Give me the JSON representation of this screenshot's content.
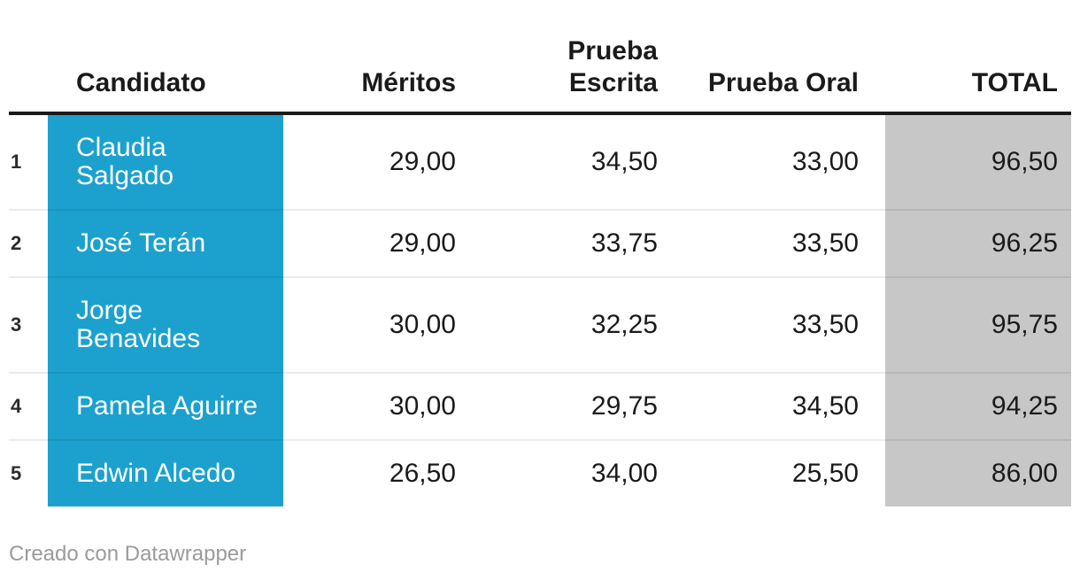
{
  "chart_data": {
    "type": "table",
    "columns": [
      "",
      "Candidato",
      "Méritos",
      "Prueba Escrita",
      "Prueba Oral",
      "TOTAL"
    ],
    "rows": [
      [
        "1",
        "Claudia Salgado",
        "29,00",
        "34,50",
        "33,00",
        "96,50"
      ],
      [
        "2",
        "José Terán",
        "29,00",
        "33,75",
        "33,50",
        "96,25"
      ],
      [
        "3",
        "Jorge Benavides",
        "30,00",
        "32,25",
        "33,50",
        "95,75"
      ],
      [
        "4",
        "Pamela Aguirre",
        "30,00",
        "29,75",
        "34,50",
        "94,25"
      ],
      [
        "5",
        "Edwin Alcedo",
        "26,50",
        "34,00",
        "25,50",
        "86,00"
      ]
    ],
    "highlight_columns": {
      "Candidato": "blue background, white text",
      "TOTAL": "gray background"
    }
  },
  "header": {
    "rank": "",
    "candidato": "Candidato",
    "meritos": "Méritos",
    "prueba_escrita": "Prueba\nEscrita",
    "prueba_oral": "Prueba Oral",
    "total": "TOTAL"
  },
  "rows": [
    {
      "rank": "1",
      "name": "Claudia\nSalgado",
      "meritos": "29,00",
      "prueba_escrita": "34,50",
      "prueba_oral": "33,00",
      "total": "96,50"
    },
    {
      "rank": "2",
      "name": "José Terán",
      "meritos": "29,00",
      "prueba_escrita": "33,75",
      "prueba_oral": "33,50",
      "total": "96,25"
    },
    {
      "rank": "3",
      "name": "Jorge\nBenavides",
      "meritos": "30,00",
      "prueba_escrita": "32,25",
      "prueba_oral": "33,50",
      "total": "95,75"
    },
    {
      "rank": "4",
      "name": "Pamela Aguirre",
      "meritos": "30,00",
      "prueba_escrita": "29,75",
      "prueba_oral": "34,50",
      "total": "94,25"
    },
    {
      "rank": "5",
      "name": "Edwin Alcedo",
      "meritos": "26,50",
      "prueba_escrita": "34,00",
      "prueba_oral": "25,50",
      "total": "86,00"
    }
  ],
  "footer": {
    "credit": "Creado con Datawrapper"
  },
  "colors": {
    "accent_blue": "#1CA1CE",
    "total_gray": "#C7C7C7",
    "header_border": "#1A1A1A",
    "row_separator": "rgba(0,0,0,0.08)",
    "footer_text": "#9B9B9B",
    "text": "#1A1A1A",
    "name_text": "#FFFFFF"
  }
}
